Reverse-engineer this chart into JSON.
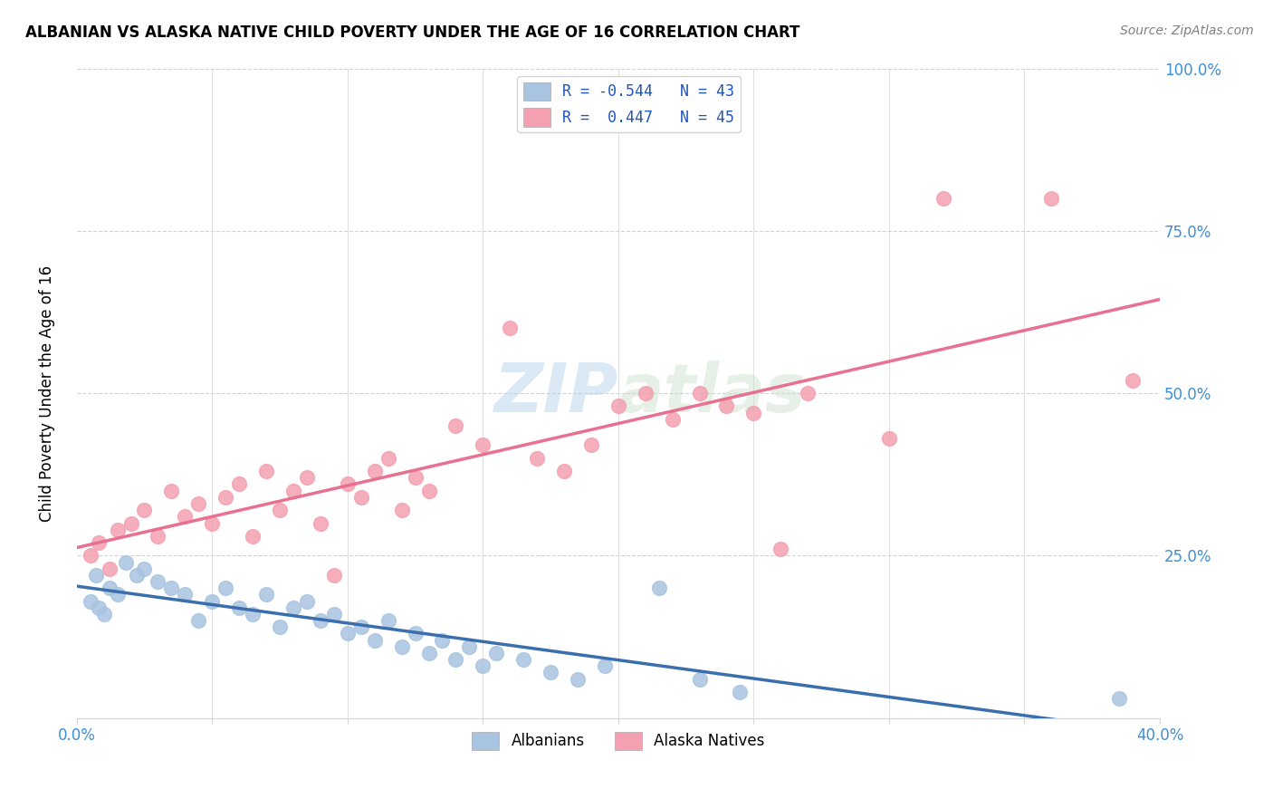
{
  "title": "ALBANIAN VS ALASKA NATIVE CHILD POVERTY UNDER THE AGE OF 16 CORRELATION CHART",
  "source": "Source: ZipAtlas.com",
  "ylabel": "Child Poverty Under the Age of 16",
  "xlim": [
    0.0,
    0.4
  ],
  "ylim": [
    0.0,
    1.0
  ],
  "watermark_zip": "ZIP",
  "watermark_atlas": "atlas",
  "albanians_color": "#a8c4e0",
  "alaska_color": "#f4a0b0",
  "albanian_line_color": "#3a6eac",
  "alaska_line_color": "#e87090",
  "albanian_r": -0.544,
  "albanian_n": 43,
  "alaska_r": 0.447,
  "alaska_n": 45,
  "albanians_x": [
    0.007,
    0.012,
    0.005,
    0.018,
    0.022,
    0.008,
    0.015,
    0.025,
    0.01,
    0.03,
    0.04,
    0.035,
    0.045,
    0.05,
    0.055,
    0.06,
    0.065,
    0.07,
    0.075,
    0.08,
    0.085,
    0.09,
    0.095,
    0.1,
    0.105,
    0.11,
    0.115,
    0.12,
    0.125,
    0.13,
    0.135,
    0.14,
    0.145,
    0.15,
    0.155,
    0.165,
    0.175,
    0.185,
    0.195,
    0.215,
    0.23,
    0.245,
    0.385
  ],
  "albanians_y": [
    0.22,
    0.2,
    0.18,
    0.24,
    0.22,
    0.17,
    0.19,
    0.23,
    0.16,
    0.21,
    0.19,
    0.2,
    0.15,
    0.18,
    0.2,
    0.17,
    0.16,
    0.19,
    0.14,
    0.17,
    0.18,
    0.15,
    0.16,
    0.13,
    0.14,
    0.12,
    0.15,
    0.11,
    0.13,
    0.1,
    0.12,
    0.09,
    0.11,
    0.08,
    0.1,
    0.09,
    0.07,
    0.06,
    0.08,
    0.2,
    0.06,
    0.04,
    0.03
  ],
  "alaska_x": [
    0.005,
    0.008,
    0.012,
    0.015,
    0.02,
    0.025,
    0.03,
    0.035,
    0.04,
    0.045,
    0.05,
    0.055,
    0.06,
    0.065,
    0.07,
    0.075,
    0.08,
    0.085,
    0.09,
    0.095,
    0.1,
    0.105,
    0.11,
    0.115,
    0.12,
    0.125,
    0.13,
    0.14,
    0.15,
    0.16,
    0.17,
    0.18,
    0.19,
    0.2,
    0.21,
    0.22,
    0.23,
    0.24,
    0.25,
    0.26,
    0.27,
    0.3,
    0.32,
    0.36,
    0.39
  ],
  "alaska_y": [
    0.25,
    0.27,
    0.23,
    0.29,
    0.3,
    0.32,
    0.28,
    0.35,
    0.31,
    0.33,
    0.3,
    0.34,
    0.36,
    0.28,
    0.38,
    0.32,
    0.35,
    0.37,
    0.3,
    0.22,
    0.36,
    0.34,
    0.38,
    0.4,
    0.32,
    0.37,
    0.35,
    0.45,
    0.42,
    0.6,
    0.4,
    0.38,
    0.42,
    0.48,
    0.5,
    0.46,
    0.5,
    0.48,
    0.47,
    0.26,
    0.5,
    0.43,
    0.8,
    0.8,
    0.52
  ]
}
